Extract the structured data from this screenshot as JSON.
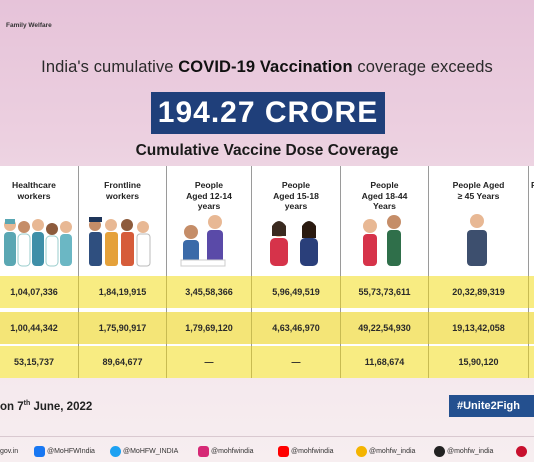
{
  "header": {
    "ministry_fragment": "Family Welfare",
    "headline_prefix": "India's cumulative ",
    "headline_bold": "COVID-19 Vaccination",
    "headline_suffix": " coverage exceeds",
    "big_figure": "194.27 CRORE",
    "subheading": "Cumulative Vaccine Dose Coverage"
  },
  "columns": [
    {
      "label_line1": "Healthcare",
      "label_line2": "workers",
      "label_line3": "",
      "dose1": "1,04,07,336",
      "dose2": "1,00,44,342",
      "precaution": "53,15,737"
    },
    {
      "label_line1": "Frontline",
      "label_line2": "workers",
      "label_line3": "",
      "dose1": "1,84,19,915",
      "dose2": "1,75,90,917",
      "precaution": "89,64,677"
    },
    {
      "label_line1": "People",
      "label_line2": "Aged 12-14",
      "label_line3": "years",
      "dose1": "3,45,58,366",
      "dose2": "1,79,69,120",
      "precaution": "—"
    },
    {
      "label_line1": "People",
      "label_line2": "Aged 15-18",
      "label_line3": "years",
      "dose1": "5,96,49,519",
      "dose2": "4,63,46,970",
      "precaution": "—"
    },
    {
      "label_line1": "People",
      "label_line2": "Aged 18-44",
      "label_line3": "Years",
      "dose1": "55,73,73,611",
      "dose2": "49,22,54,930",
      "precaution": "11,68,674"
    },
    {
      "label_line1": "People Aged",
      "label_line2": "≥ 45 Years",
      "label_line3": "",
      "dose1": "20,32,89,319",
      "dose2": "19,13,42,058",
      "precaution": "15,90,120"
    },
    {
      "label_line1": "P",
      "label_line2": "",
      "label_line3": "",
      "dose1": "",
      "dose2": "",
      "precaution": ""
    }
  ],
  "date_line": {
    "prefix": "on 7",
    "sup": "th",
    "suffix": " June, 2022"
  },
  "hashtag": "#Unite2Figh",
  "footer": [
    {
      "icon": "web-icon",
      "text": "gov.in",
      "color": "#ffffff"
    },
    {
      "icon": "facebook-icon",
      "text": "@MoHFWIndia",
      "color": "#1877f2"
    },
    {
      "icon": "twitter-icon",
      "text": "@MoHFW_INDIA",
      "color": "#1da1f2"
    },
    {
      "icon": "instagram-icon",
      "text": "@mohfwindia",
      "color": "#d62976"
    },
    {
      "icon": "youtube-icon",
      "text": "@mohfwindia",
      "color": "#ff0000"
    },
    {
      "icon": "koo-icon",
      "text": "@mohfw_india",
      "color": "#f4b400"
    },
    {
      "icon": "sharechat-icon",
      "text": "@mohfw_india",
      "color": "#222222"
    },
    {
      "icon": "pinterest-icon",
      "text": "",
      "color": "#c8102e"
    }
  ]
}
